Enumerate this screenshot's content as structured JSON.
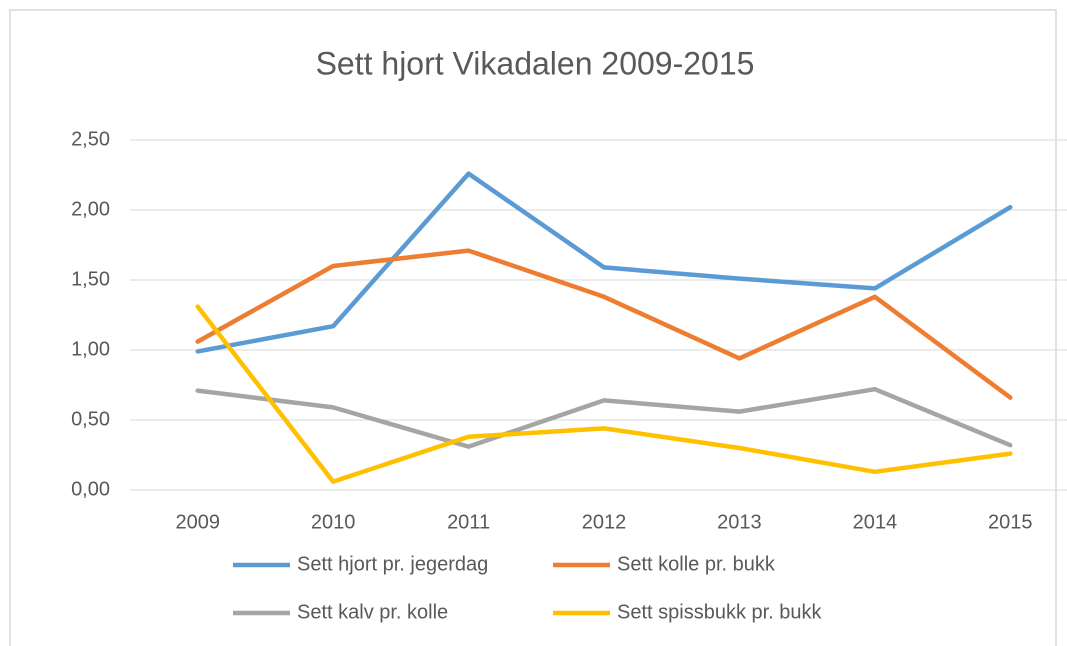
{
  "chart_data": {
    "type": "line",
    "title": "Sett hjort Vikadalen 2009-2015",
    "categories": [
      "2009",
      "2010",
      "2011",
      "2012",
      "2013",
      "2014",
      "2015"
    ],
    "series": [
      {
        "name": "Sett hjort pr. jegerdag",
        "color": "#5b9bd5",
        "values": [
          0.99,
          1.17,
          2.26,
          1.59,
          1.51,
          1.44,
          2.02
        ]
      },
      {
        "name": "Sett kolle pr. bukk",
        "color": "#ed7d31",
        "values": [
          1.06,
          1.6,
          1.71,
          1.38,
          0.94,
          1.38,
          0.66
        ]
      },
      {
        "name": "Sett kalv pr. kolle",
        "color": "#a5a5a5",
        "values": [
          0.71,
          0.59,
          0.31,
          0.64,
          0.56,
          0.72,
          0.32
        ]
      },
      {
        "name": "Sett spissbukk pr. bukk",
        "color": "#ffc000",
        "values": [
          1.31,
          0.06,
          0.38,
          0.44,
          0.3,
          0.13,
          0.26
        ]
      }
    ],
    "ylim": [
      0,
      2.5
    ],
    "yticks": [
      {
        "value": 0,
        "label": "0,00"
      },
      {
        "value": 0.5,
        "label": "0,50"
      },
      {
        "value": 1,
        "label": "1,00"
      },
      {
        "value": 1.5,
        "label": "1,50"
      },
      {
        "value": 2,
        "label": "2,00"
      },
      {
        "value": 2.5,
        "label": "2,50"
      }
    ],
    "grid": true,
    "legend": "bottom"
  }
}
